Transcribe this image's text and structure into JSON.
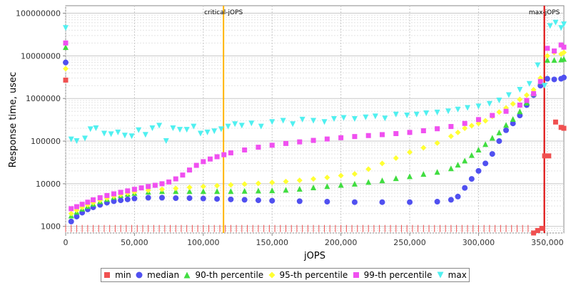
{
  "chart_data": {
    "type": "scatter",
    "xlabel": "jOPS",
    "ylabel": "Response time, usec",
    "y_scale": "log",
    "xlim": [
      0,
      362000
    ],
    "ylim": [
      700,
      150000000
    ],
    "x_ticks": [
      0,
      50000,
      100000,
      150000,
      200000,
      250000,
      300000,
      350000
    ],
    "x_tick_labels": [
      "0",
      "50,000",
      "100,000",
      "150,000",
      "200,000",
      "250,000",
      "300,000",
      "350,000"
    ],
    "y_ticks": [
      1000,
      10000,
      100000,
      1000000,
      10000000,
      100000000
    ],
    "y_tick_labels": [
      "1000",
      "10000",
      "100000",
      "1000000",
      "10000000",
      "100000000"
    ],
    "grid": true,
    "legend_position": "bottom",
    "markers": [
      {
        "label": "critical-jOPS",
        "x": 114700,
        "color": "#ffb400"
      },
      {
        "label": "max-jOPS",
        "x": 347800,
        "color": "#dd0000"
      }
    ],
    "series": [
      {
        "name": "min",
        "color": "#f05050",
        "shape": "square",
        "x": [
          0,
          340000,
          343000,
          346000,
          348000,
          351000,
          356000,
          360000,
          362000
        ],
        "y": [
          2700000,
          700,
          800,
          900,
          45000,
          45000,
          280000,
          210000,
          200000
        ]
      },
      {
        "name": "median",
        "color": "#5050f0",
        "shape": "circle",
        "x": [
          0,
          4000,
          8000,
          12000,
          16000,
          20000,
          25000,
          30000,
          35000,
          40000,
          45000,
          50000,
          60000,
          70000,
          80000,
          90000,
          100000,
          110000,
          120000,
          130000,
          140000,
          150000,
          170000,
          190000,
          210000,
          230000,
          250000,
          270000,
          280000,
          285000,
          290000,
          295000,
          300000,
          305000,
          310000,
          315000,
          320000,
          325000,
          330000,
          335000,
          340000,
          345000,
          350000,
          355000,
          360000,
          362000
        ],
        "y": [
          7000000,
          1300,
          1700,
          2100,
          2500,
          2800,
          3200,
          3600,
          3900,
          4100,
          4300,
          4500,
          4700,
          4700,
          4600,
          4600,
          4500,
          4400,
          4300,
          4200,
          4100,
          4000,
          3900,
          3800,
          3700,
          3700,
          3700,
          3800,
          4200,
          5000,
          8000,
          13000,
          20000,
          30000,
          50000,
          100000,
          180000,
          260000,
          400000,
          700000,
          1200000,
          2000000,
          2900000,
          2800000,
          2900000,
          3100000
        ]
      },
      {
        "name": "90-th percentile",
        "color": "#40dd40",
        "shape": "triangle-up",
        "x": [
          0,
          4000,
          8000,
          12000,
          16000,
          20000,
          25000,
          30000,
          35000,
          40000,
          45000,
          50000,
          60000,
          70000,
          80000,
          90000,
          100000,
          110000,
          120000,
          130000,
          140000,
          150000,
          160000,
          170000,
          180000,
          190000,
          200000,
          210000,
          220000,
          230000,
          240000,
          250000,
          260000,
          270000,
          280000,
          285000,
          290000,
          295000,
          300000,
          305000,
          310000,
          315000,
          320000,
          325000,
          330000,
          335000,
          340000,
          345000,
          350000,
          355000,
          360000,
          362000
        ],
        "y": [
          16000000,
          1800,
          2200,
          2600,
          3000,
          3400,
          3900,
          4400,
          4900,
          5400,
          5800,
          6100,
          6500,
          6700,
          6700,
          6700,
          6700,
          6700,
          6700,
          6800,
          6900,
          7000,
          7200,
          7600,
          8200,
          8800,
          9400,
          10000,
          11000,
          12000,
          13500,
          15000,
          17000,
          19000,
          23000,
          28000,
          35000,
          47000,
          63000,
          85000,
          120000,
          160000,
          240000,
          330000,
          500000,
          800000,
          1300000,
          2500000,
          8000000,
          8000000,
          8200000,
          8500000
        ]
      },
      {
        "name": "95-th percentile",
        "color": "#ffff33",
        "shape": "diamond",
        "x": [
          0,
          4000,
          8000,
          12000,
          16000,
          20000,
          25000,
          30000,
          35000,
          40000,
          45000,
          50000,
          60000,
          70000,
          80000,
          90000,
          100000,
          110000,
          120000,
          130000,
          140000,
          150000,
          160000,
          170000,
          180000,
          190000,
          200000,
          210000,
          220000,
          230000,
          240000,
          250000,
          260000,
          270000,
          280000,
          285000,
          290000,
          295000,
          300000,
          305000,
          310000,
          315000,
          320000,
          325000,
          330000,
          335000,
          340000,
          345000,
          350000,
          355000,
          360000,
          362000
        ],
        "y": [
          5000000,
          2000,
          2400,
          2800,
          3200,
          3600,
          4100,
          4600,
          5100,
          5600,
          6000,
          6400,
          7000,
          7400,
          7800,
          8200,
          8600,
          9000,
          9400,
          9800,
          10200,
          10700,
          11300,
          12000,
          13000,
          14000,
          15500,
          17000,
          22000,
          30000,
          40000,
          55000,
          70000,
          90000,
          130000,
          160000,
          200000,
          230000,
          260000,
          300000,
          380000,
          480000,
          600000,
          750000,
          950000,
          1200000,
          1600000,
          3000000,
          10000000,
          12000000,
          11000000,
          12000000
        ]
      },
      {
        "name": "99-th percentile",
        "color": "#f050f0",
        "shape": "square",
        "x": [
          0,
          4000,
          8000,
          12000,
          16000,
          20000,
          25000,
          30000,
          35000,
          40000,
          45000,
          50000,
          55000,
          60000,
          65000,
          70000,
          75000,
          80000,
          85000,
          90000,
          95000,
          100000,
          105000,
          110000,
          115000,
          120000,
          130000,
          140000,
          150000,
          160000,
          170000,
          180000,
          190000,
          200000,
          210000,
          220000,
          230000,
          240000,
          250000,
          260000,
          270000,
          280000,
          290000,
          300000,
          310000,
          320000,
          330000,
          335000,
          340000,
          345000,
          350000,
          355000,
          360000,
          362000
        ],
        "y": [
          20000000,
          2600,
          2900,
          3300,
          3700,
          4200,
          4700,
          5300,
          5800,
          6300,
          6800,
          7400,
          8000,
          8600,
          9200,
          10000,
          11000,
          13000,
          16000,
          21000,
          27000,
          33000,
          38000,
          43000,
          48000,
          53000,
          62000,
          72000,
          80000,
          88000,
          96000,
          104000,
          112000,
          120000,
          128000,
          135000,
          142000,
          150000,
          160000,
          175000,
          195000,
          220000,
          260000,
          320000,
          400000,
          500000,
          700000,
          900000,
          1300000,
          2500000,
          15000000,
          13000000,
          18000000,
          16000000
        ]
      },
      {
        "name": "max",
        "color": "#50f0f0",
        "shape": "triangle-down",
        "x": [
          0,
          4000,
          8000,
          14000,
          18000,
          22000,
          28000,
          33000,
          38000,
          43000,
          48000,
          53000,
          58000,
          63000,
          68000,
          73000,
          78000,
          83000,
          88000,
          93000,
          98000,
          103000,
          108000,
          113000,
          118000,
          123000,
          128000,
          135000,
          142000,
          150000,
          158000,
          165000,
          172000,
          180000,
          188000,
          195000,
          202000,
          210000,
          218000,
          225000,
          232000,
          240000,
          248000,
          255000,
          262000,
          270000,
          278000,
          285000,
          292000,
          300000,
          308000,
          315000,
          322000,
          330000,
          337000,
          343000,
          348000,
          352000,
          356000,
          360000,
          362000
        ],
        "y": [
          45000000,
          110000,
          100000,
          115000,
          190000,
          200000,
          150000,
          145000,
          160000,
          135000,
          130000,
          180000,
          140000,
          200000,
          230000,
          100000,
          200000,
          185000,
          185000,
          220000,
          150000,
          160000,
          170000,
          190000,
          220000,
          250000,
          230000,
          260000,
          220000,
          280000,
          300000,
          250000,
          320000,
          300000,
          280000,
          330000,
          350000,
          330000,
          360000,
          380000,
          340000,
          420000,
          400000,
          420000,
          450000,
          470000,
          500000,
          550000,
          600000,
          650000,
          750000,
          900000,
          1200000,
          1600000,
          2200000,
          6000000,
          2000000,
          50000000,
          60000000,
          45000000,
          55000000
        ]
      },
      {
        "name": "",
        "color": "#f05050",
        "shape": "tick",
        "x": [
          0,
          4000,
          8000,
          12000,
          16000,
          20000,
          24000,
          28000,
          32000,
          36000,
          40000,
          44000,
          48000,
          52000,
          56000,
          60000,
          64000,
          68000,
          72000,
          76000,
          80000,
          84000,
          88000,
          92000,
          96000,
          100000,
          104000,
          108000,
          112000,
          116000,
          120000,
          124000,
          128000,
          132000,
          136000,
          140000,
          144000,
          148000,
          152000,
          156000,
          160000,
          164000,
          168000,
          172000,
          176000,
          180000,
          184000,
          188000,
          192000,
          196000,
          200000,
          204000,
          208000,
          212000,
          216000,
          220000,
          224000,
          228000,
          232000,
          236000,
          240000,
          244000,
          248000,
          252000,
          256000,
          260000,
          264000,
          268000,
          272000,
          276000,
          280000,
          284000,
          288000,
          292000,
          296000,
          300000,
          304000,
          308000,
          312000,
          316000,
          320000,
          324000,
          328000,
          332000,
          336000
        ],
        "y": [
          1000,
          1000,
          1000,
          1000,
          1000,
          1000,
          1000,
          1000,
          1000,
          1000,
          1000,
          1000,
          1000,
          1000,
          1000,
          1000,
          1000,
          1000,
          1000,
          1000,
          1000,
          1000,
          1000,
          1000,
          1000,
          1000,
          1000,
          1000,
          1000,
          1000,
          1000,
          1000,
          1000,
          1000,
          1000,
          1000,
          1000,
          1000,
          1000,
          1000,
          1000,
          1000,
          1000,
          1000,
          1000,
          1000,
          1000,
          1000,
          1000,
          1000,
          1000,
          1000,
          1000,
          1000,
          1000,
          1000,
          1000,
          1000,
          1000,
          1000,
          1000,
          1000,
          1000,
          1000,
          1000,
          1000,
          1000,
          1000,
          1000,
          1000,
          1000,
          1000,
          1000,
          1000,
          1000,
          1000,
          1000,
          1000,
          1000,
          1000,
          1000,
          1000,
          1000,
          1000,
          1000
        ]
      }
    ]
  }
}
